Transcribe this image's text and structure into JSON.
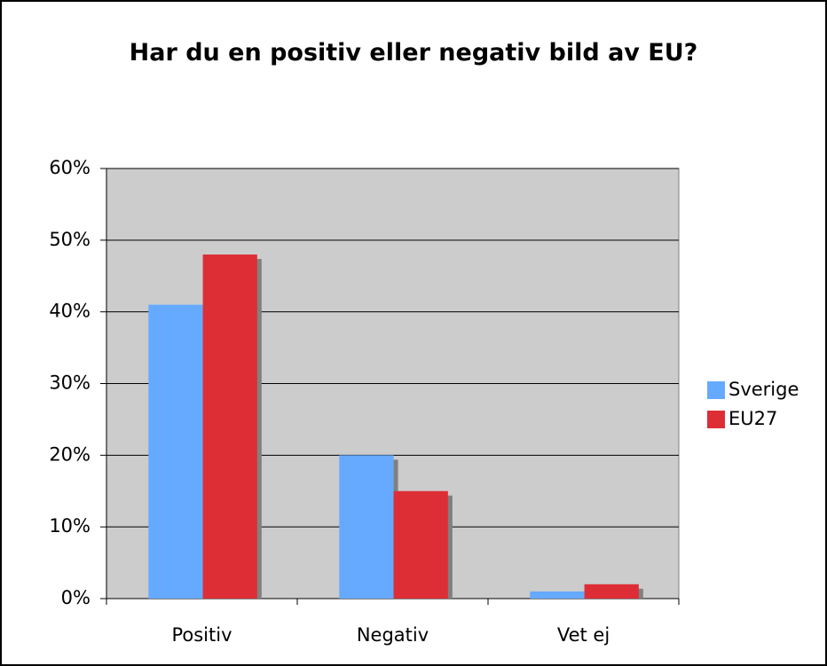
{
  "chart_data": {
    "type": "bar",
    "title": "Har du en positiv eller negativ bild av EU?",
    "categories": [
      "Positiv",
      "Negativ",
      "Vet ej"
    ],
    "series": [
      {
        "name": "Sverige",
        "color": "#66aaff",
        "values": [
          41,
          20,
          1
        ]
      },
      {
        "name": "EU27",
        "color": "#dd2e36",
        "values": [
          48,
          15,
          2
        ]
      }
    ],
    "ylim": [
      0,
      60
    ],
    "yticks": [
      {
        "value": 0,
        "label": "0%"
      },
      {
        "value": 10,
        "label": "10%"
      },
      {
        "value": 20,
        "label": "20%"
      },
      {
        "value": 30,
        "label": "30%"
      },
      {
        "value": 40,
        "label": "40%"
      },
      {
        "value": 50,
        "label": "50%"
      },
      {
        "value": 60,
        "label": "60%"
      }
    ],
    "grid": true,
    "legend": "right"
  }
}
